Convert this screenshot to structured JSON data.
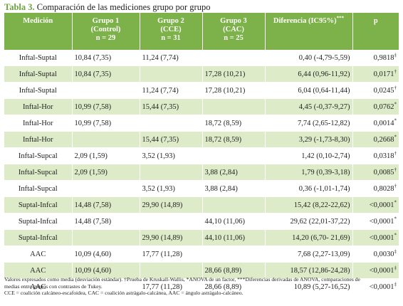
{
  "caption": {
    "label": "Tabla 3.",
    "text": "Comparación de las mediciones grupo por grupo"
  },
  "table": {
    "headers": [
      "Medición",
      "Grupo 1\n(Control)\nn = 29",
      "Grupo 2\n(CCE)\nn = 31",
      "Grupo 3\n(CAC)\nn = 25",
      "Diferencia (IC95%)",
      "p"
    ],
    "header_diff_mark": "***",
    "rows": [
      {
        "cells": [
          "Inftal-Suptal",
          "10,84 (7,35)",
          "11,24 (7,74)",
          "",
          "0,40 (-4,79-5,59)",
          "0,9818"
        ],
        "mark": "‡"
      },
      {
        "cells": [
          "Inftal-Suptal",
          "10,84 (7,35)",
          "",
          "17,28 (10,21)",
          "6,44 (0,96-11,92)",
          "0,0171"
        ],
        "mark": "†"
      },
      {
        "cells": [
          "Inftal-Suptal",
          "",
          "11,24 (7,74)",
          "17,28 (10,21)",
          "6,04 (0,64-11,44)",
          "0,0245"
        ],
        "mark": "†"
      },
      {
        "cells": [
          "Inftal-Hor",
          "10,99 (7,58)",
          "15,44 (7,35)",
          "",
          "4,45 (-0,37-9,27)",
          "0,0762"
        ],
        "mark": "*"
      },
      {
        "cells": [
          "Inftal-Hor",
          "10,99 (7,58)",
          "",
          "18,72 (8,59)",
          "7,74 (2,65-12,82)",
          "0,0014"
        ],
        "mark": "*"
      },
      {
        "cells": [
          "Inftal-Hor",
          "",
          "15,44 (7,35)",
          "18,72 (8,59)",
          "3,29 (-1,73-8,30)",
          "0,2668"
        ],
        "mark": "*"
      },
      {
        "cells": [
          "Inftal-Supcal",
          "2,09 (1,59)",
          "3,52 (1,93)",
          "",
          "1,42 (0,10-2,74)",
          "0,0318"
        ],
        "mark": "†"
      },
      {
        "cells": [
          "Inftal-Supcal",
          "2,09 (1,59)",
          "",
          "3,88 (2,84)",
          "1,79 (0,39-3,18)",
          "0,0085"
        ],
        "mark": "†"
      },
      {
        "cells": [
          "Inftal-Supcal",
          "",
          "3,52 (1,93)",
          "3,88 (2,84)",
          "0,36 (-1,01-1,74)",
          "0,8028"
        ],
        "mark": "†"
      },
      {
        "cells": [
          "Suptal-Infcal",
          "14,48 (7,58)",
          "29,90 (14,89)",
          "",
          "15,42 (8,22-22,62)",
          "<0,0001"
        ],
        "mark": "*"
      },
      {
        "cells": [
          "Suptal-Infcal",
          "14,48 (7,58)",
          "",
          "44,10 (11,06)",
          "29,62 (22,01-37,22)",
          "<0,0001"
        ],
        "mark": "*"
      },
      {
        "cells": [
          "Suptal-Infcal",
          "",
          "29,90 (14,89)",
          "44,10 (11,06)",
          "14,20 (6,70- 21,69)",
          "<0,0001"
        ],
        "mark": "*"
      },
      {
        "cells": [
          "AAC",
          "10,09 (4,60)",
          "17,77 (11,28)",
          "",
          "7,68 (2,27-13,09)",
          "0,0030"
        ],
        "mark": "‡"
      },
      {
        "cells": [
          "AAC",
          "10,09 (4,60)",
          "",
          "28,66 (8,89)",
          "18,57 (12,86-24,28)",
          "<0,0001"
        ],
        "mark": "‡"
      },
      {
        "cells": [
          "AAC",
          "",
          "17,77 (11,28)",
          "28,66 (8,89)",
          "10,89 (5,27-16,52)",
          "<0,0001"
        ],
        "mark": "‡"
      }
    ]
  },
  "footnotes": {
    "line1": "Valores expresados como media (desviación estándar). †Prueba de Kruskall-Wallis, *ANOVA de un factor, ***Diferencias derivadas de ANOVA, comparaciones de",
    "line2": "medias entre grupos con contrastes de Tukey.",
    "line3": "CCE = coalición calcáneo-escafoidea, CAC = coalición astrágalo-calcánea, AAC = ángulo astrágalo-calcáneo."
  }
}
